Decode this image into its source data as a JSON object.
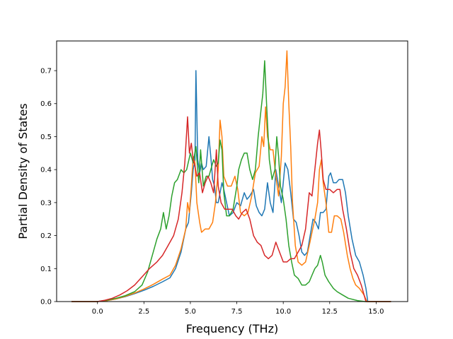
{
  "chart_data": {
    "type": "line",
    "xlabel": "Frequency (THz)",
    "ylabel": "Partial Density of States",
    "xlim": [
      -2.2,
      16.7
    ],
    "ylim": [
      0.0,
      0.79
    ],
    "xticks": [
      0.0,
      2.5,
      5.0,
      7.5,
      10.0,
      12.5,
      15.0
    ],
    "xtick_labels": [
      "0.0",
      "2.5",
      "5.0",
      "7.5",
      "10.0",
      "12.5",
      "15.0"
    ],
    "yticks": [
      0.0,
      0.1,
      0.2,
      0.3,
      0.4,
      0.5,
      0.6,
      0.7
    ],
    "ytick_labels": [
      "0.0",
      "0.1",
      "0.2",
      "0.3",
      "0.4",
      "0.5",
      "0.6",
      "0.7"
    ],
    "grid": false,
    "series": [
      {
        "color": "#1f77b4",
        "points": [
          [
            -1.4,
            0
          ],
          [
            0,
            0
          ],
          [
            0.5,
            0.003
          ],
          [
            1,
            0.008
          ],
          [
            1.5,
            0.015
          ],
          [
            2,
            0.024
          ],
          [
            2.5,
            0.034
          ],
          [
            3,
            0.046
          ],
          [
            3.5,
            0.06
          ],
          [
            3.9,
            0.072
          ],
          [
            4.2,
            0.1
          ],
          [
            4.5,
            0.15
          ],
          [
            4.75,
            0.22
          ],
          [
            4.9,
            0.24
          ],
          [
            5.05,
            0.33
          ],
          [
            5.15,
            0.4
          ],
          [
            5.25,
            0.43
          ],
          [
            5.3,
            0.7
          ],
          [
            5.4,
            0.43
          ],
          [
            5.5,
            0.39
          ],
          [
            5.6,
            0.42
          ],
          [
            5.7,
            0.4
          ],
          [
            5.85,
            0.41
          ],
          [
            6.0,
            0.5
          ],
          [
            6.1,
            0.44
          ],
          [
            6.2,
            0.37
          ],
          [
            6.3,
            0.35
          ],
          [
            6.4,
            0.3
          ],
          [
            6.5,
            0.3
          ],
          [
            6.6,
            0.33
          ],
          [
            6.7,
            0.36
          ],
          [
            6.8,
            0.34
          ],
          [
            6.95,
            0.3
          ],
          [
            7.1,
            0.26
          ],
          [
            7.3,
            0.27
          ],
          [
            7.5,
            0.3
          ],
          [
            7.7,
            0.29
          ],
          [
            7.9,
            0.33
          ],
          [
            8.05,
            0.31
          ],
          [
            8.2,
            0.32
          ],
          [
            8.4,
            0.34
          ],
          [
            8.55,
            0.29
          ],
          [
            8.7,
            0.27
          ],
          [
            8.85,
            0.26
          ],
          [
            9.0,
            0.28
          ],
          [
            9.15,
            0.36
          ],
          [
            9.3,
            0.3
          ],
          [
            9.45,
            0.27
          ],
          [
            9.6,
            0.4
          ],
          [
            9.75,
            0.35
          ],
          [
            9.9,
            0.3
          ],
          [
            10.1,
            0.42
          ],
          [
            10.25,
            0.4
          ],
          [
            10.4,
            0.33
          ],
          [
            10.55,
            0.25
          ],
          [
            10.7,
            0.24
          ],
          [
            10.85,
            0.2
          ],
          [
            11.0,
            0.15
          ],
          [
            11.15,
            0.14
          ],
          [
            11.3,
            0.15
          ],
          [
            11.45,
            0.2
          ],
          [
            11.6,
            0.25
          ],
          [
            11.75,
            0.24
          ],
          [
            11.9,
            0.22
          ],
          [
            12.0,
            0.27
          ],
          [
            12.15,
            0.27
          ],
          [
            12.3,
            0.28
          ],
          [
            12.45,
            0.38
          ],
          [
            12.55,
            0.39
          ],
          [
            12.7,
            0.36
          ],
          [
            12.85,
            0.36
          ],
          [
            13.0,
            0.37
          ],
          [
            13.2,
            0.37
          ],
          [
            13.35,
            0.33
          ],
          [
            13.5,
            0.26
          ],
          [
            13.7,
            0.19
          ],
          [
            13.9,
            0.14
          ],
          [
            14.1,
            0.12
          ],
          [
            14.3,
            0.08
          ],
          [
            14.45,
            0.04
          ],
          [
            14.55,
            0.0
          ],
          [
            15.8,
            0.0
          ]
        ]
      },
      {
        "color": "#ff7f0e",
        "points": [
          [
            -1.4,
            0
          ],
          [
            0,
            0
          ],
          [
            0.5,
            0.003
          ],
          [
            1,
            0.008
          ],
          [
            1.5,
            0.016
          ],
          [
            2,
            0.026
          ],
          [
            2.5,
            0.038
          ],
          [
            3,
            0.052
          ],
          [
            3.5,
            0.068
          ],
          [
            3.9,
            0.08
          ],
          [
            4.2,
            0.11
          ],
          [
            4.5,
            0.16
          ],
          [
            4.75,
            0.22
          ],
          [
            4.85,
            0.3
          ],
          [
            4.95,
            0.27
          ],
          [
            5.05,
            0.35
          ],
          [
            5.15,
            0.44
          ],
          [
            5.25,
            0.42
          ],
          [
            5.35,
            0.3
          ],
          [
            5.5,
            0.24
          ],
          [
            5.6,
            0.21
          ],
          [
            5.8,
            0.22
          ],
          [
            6.0,
            0.22
          ],
          [
            6.2,
            0.24
          ],
          [
            6.35,
            0.3
          ],
          [
            6.5,
            0.4
          ],
          [
            6.6,
            0.55
          ],
          [
            6.7,
            0.5
          ],
          [
            6.8,
            0.38
          ],
          [
            7.0,
            0.35
          ],
          [
            7.2,
            0.35
          ],
          [
            7.4,
            0.38
          ],
          [
            7.55,
            0.34
          ],
          [
            7.7,
            0.27
          ],
          [
            7.9,
            0.26
          ],
          [
            8.1,
            0.27
          ],
          [
            8.3,
            0.32
          ],
          [
            8.5,
            0.39
          ],
          [
            8.7,
            0.41
          ],
          [
            8.85,
            0.5
          ],
          [
            8.95,
            0.47
          ],
          [
            9.05,
            0.59
          ],
          [
            9.15,
            0.5
          ],
          [
            9.3,
            0.46
          ],
          [
            9.45,
            0.46
          ],
          [
            9.6,
            0.38
          ],
          [
            9.75,
            0.32
          ],
          [
            9.9,
            0.44
          ],
          [
            10.0,
            0.6
          ],
          [
            10.1,
            0.65
          ],
          [
            10.2,
            0.76
          ],
          [
            10.3,
            0.6
          ],
          [
            10.4,
            0.47
          ],
          [
            10.5,
            0.3
          ],
          [
            10.65,
            0.17
          ],
          [
            10.8,
            0.12
          ],
          [
            11.0,
            0.11
          ],
          [
            11.2,
            0.12
          ],
          [
            11.4,
            0.17
          ],
          [
            11.55,
            0.21
          ],
          [
            11.7,
            0.25
          ],
          [
            11.85,
            0.3
          ],
          [
            11.95,
            0.4
          ],
          [
            12.05,
            0.43
          ],
          [
            12.15,
            0.36
          ],
          [
            12.3,
            0.3
          ],
          [
            12.45,
            0.21
          ],
          [
            12.6,
            0.21
          ],
          [
            12.75,
            0.26
          ],
          [
            12.9,
            0.26
          ],
          [
            13.1,
            0.25
          ],
          [
            13.25,
            0.21
          ],
          [
            13.45,
            0.14
          ],
          [
            13.6,
            0.1
          ],
          [
            13.75,
            0.07
          ],
          [
            13.9,
            0.05
          ],
          [
            14.1,
            0.04
          ],
          [
            14.35,
            0.02
          ],
          [
            14.5,
            0.0
          ],
          [
            15.8,
            0.0
          ]
        ]
      },
      {
        "color": "#2ca02c",
        "points": [
          [
            -1.4,
            0
          ],
          [
            0,
            0
          ],
          [
            0.5,
            0.004
          ],
          [
            1,
            0.01
          ],
          [
            1.5,
            0.018
          ],
          [
            2,
            0.03
          ],
          [
            2.4,
            0.05
          ],
          [
            2.7,
            0.09
          ],
          [
            3.0,
            0.15
          ],
          [
            3.2,
            0.19
          ],
          [
            3.4,
            0.22
          ],
          [
            3.55,
            0.27
          ],
          [
            3.7,
            0.22
          ],
          [
            3.85,
            0.26
          ],
          [
            4.0,
            0.32
          ],
          [
            4.15,
            0.36
          ],
          [
            4.3,
            0.37
          ],
          [
            4.5,
            0.4
          ],
          [
            4.65,
            0.39
          ],
          [
            4.8,
            0.4
          ],
          [
            5.0,
            0.45
          ],
          [
            5.15,
            0.42
          ],
          [
            5.3,
            0.47
          ],
          [
            5.45,
            0.36
          ],
          [
            5.55,
            0.46
          ],
          [
            5.7,
            0.35
          ],
          [
            5.85,
            0.38
          ],
          [
            6.0,
            0.38
          ],
          [
            6.1,
            0.4
          ],
          [
            6.25,
            0.43
          ],
          [
            6.4,
            0.41
          ],
          [
            6.5,
            0.42
          ],
          [
            6.6,
            0.49
          ],
          [
            6.7,
            0.46
          ],
          [
            6.8,
            0.33
          ],
          [
            6.95,
            0.26
          ],
          [
            7.1,
            0.26
          ],
          [
            7.3,
            0.28
          ],
          [
            7.5,
            0.35
          ],
          [
            7.6,
            0.4
          ],
          [
            7.75,
            0.43
          ],
          [
            7.9,
            0.45
          ],
          [
            8.05,
            0.45
          ],
          [
            8.2,
            0.4
          ],
          [
            8.35,
            0.37
          ],
          [
            8.5,
            0.4
          ],
          [
            8.65,
            0.5
          ],
          [
            8.8,
            0.58
          ],
          [
            8.9,
            0.63
          ],
          [
            9.0,
            0.73
          ],
          [
            9.1,
            0.6
          ],
          [
            9.25,
            0.43
          ],
          [
            9.4,
            0.37
          ],
          [
            9.55,
            0.4
          ],
          [
            9.65,
            0.5
          ],
          [
            9.75,
            0.44
          ],
          [
            9.85,
            0.35
          ],
          [
            10.0,
            0.31
          ],
          [
            10.15,
            0.25
          ],
          [
            10.3,
            0.17
          ],
          [
            10.45,
            0.12
          ],
          [
            10.6,
            0.08
          ],
          [
            10.8,
            0.07
          ],
          [
            11.0,
            0.05
          ],
          [
            11.2,
            0.05
          ],
          [
            11.4,
            0.06
          ],
          [
            11.55,
            0.08
          ],
          [
            11.7,
            0.1
          ],
          [
            11.85,
            0.11
          ],
          [
            12.0,
            0.14
          ],
          [
            12.1,
            0.12
          ],
          [
            12.25,
            0.08
          ],
          [
            12.45,
            0.06
          ],
          [
            12.7,
            0.04
          ],
          [
            12.9,
            0.03
          ],
          [
            13.2,
            0.02
          ],
          [
            13.5,
            0.01
          ],
          [
            14.0,
            0.003
          ],
          [
            14.4,
            0.0
          ],
          [
            15.8,
            0.0
          ]
        ]
      },
      {
        "color": "#d62728",
        "points": [
          [
            -1.4,
            0
          ],
          [
            0,
            0
          ],
          [
            0.4,
            0.004
          ],
          [
            0.8,
            0.01
          ],
          [
            1.2,
            0.02
          ],
          [
            1.6,
            0.033
          ],
          [
            2.0,
            0.05
          ],
          [
            2.4,
            0.075
          ],
          [
            2.8,
            0.1
          ],
          [
            3.2,
            0.12
          ],
          [
            3.5,
            0.14
          ],
          [
            3.8,
            0.17
          ],
          [
            4.1,
            0.2
          ],
          [
            4.35,
            0.25
          ],
          [
            4.55,
            0.33
          ],
          [
            4.7,
            0.42
          ],
          [
            4.85,
            0.56
          ],
          [
            4.95,
            0.45
          ],
          [
            5.05,
            0.48
          ],
          [
            5.15,
            0.43
          ],
          [
            5.25,
            0.41
          ],
          [
            5.35,
            0.38
          ],
          [
            5.5,
            0.39
          ],
          [
            5.65,
            0.33
          ],
          [
            5.8,
            0.36
          ],
          [
            5.95,
            0.38
          ],
          [
            6.1,
            0.36
          ],
          [
            6.25,
            0.33
          ],
          [
            6.4,
            0.46
          ],
          [
            6.5,
            0.35
          ],
          [
            6.65,
            0.3
          ],
          [
            6.85,
            0.28
          ],
          [
            7.05,
            0.28
          ],
          [
            7.25,
            0.28
          ],
          [
            7.45,
            0.26
          ],
          [
            7.6,
            0.25
          ],
          [
            7.8,
            0.27
          ],
          [
            8.0,
            0.28
          ],
          [
            8.2,
            0.25
          ],
          [
            8.4,
            0.2
          ],
          [
            8.6,
            0.18
          ],
          [
            8.8,
            0.17
          ],
          [
            9.0,
            0.14
          ],
          [
            9.2,
            0.13
          ],
          [
            9.4,
            0.14
          ],
          [
            9.6,
            0.18
          ],
          [
            9.8,
            0.15
          ],
          [
            10.0,
            0.12
          ],
          [
            10.2,
            0.12
          ],
          [
            10.4,
            0.13
          ],
          [
            10.6,
            0.13
          ],
          [
            10.8,
            0.15
          ],
          [
            11.0,
            0.17
          ],
          [
            11.2,
            0.22
          ],
          [
            11.4,
            0.33
          ],
          [
            11.55,
            0.32
          ],
          [
            11.7,
            0.4
          ],
          [
            11.85,
            0.48
          ],
          [
            11.95,
            0.52
          ],
          [
            12.05,
            0.45
          ],
          [
            12.15,
            0.37
          ],
          [
            12.3,
            0.34
          ],
          [
            12.5,
            0.34
          ],
          [
            12.7,
            0.33
          ],
          [
            12.9,
            0.34
          ],
          [
            13.05,
            0.34
          ],
          [
            13.2,
            0.28
          ],
          [
            13.4,
            0.22
          ],
          [
            13.6,
            0.15
          ],
          [
            13.8,
            0.1
          ],
          [
            14.0,
            0.08
          ],
          [
            14.2,
            0.05
          ],
          [
            14.45,
            0.0
          ],
          [
            15.8,
            0.0
          ]
        ]
      }
    ]
  }
}
